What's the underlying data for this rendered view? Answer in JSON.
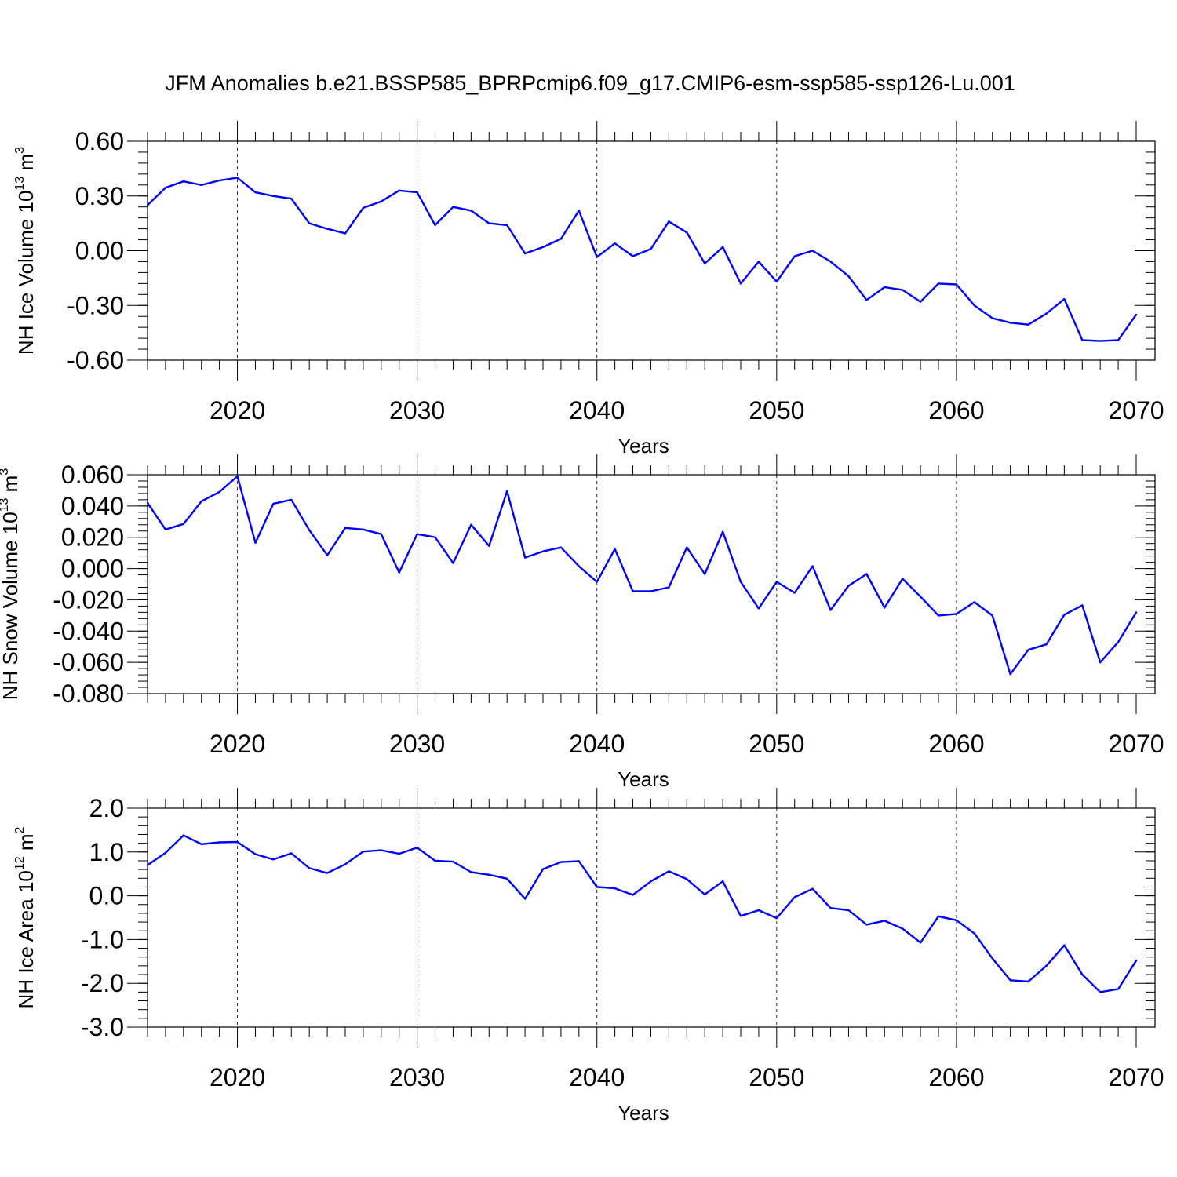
{
  "title": "JFM Anomalies b.e21.BSSP585_BPRPcmip6.f09_g17.CMIP6-esm-ssp585-ssp126-Lu.001",
  "chart_data": [
    {
      "type": "line",
      "ylabel": {
        "main": "NH Ice Volume 10",
        "exp": "13",
        "unit": " m",
        "unit_exp": "3"
      },
      "xlabel": "Years",
      "xlim": [
        2015,
        2070
      ],
      "ylim": [
        -0.6,
        0.6
      ],
      "xticks": [
        2020,
        2030,
        2040,
        2050,
        2060,
        2070
      ],
      "yticks": [
        "0.60",
        "0.30",
        "0.00",
        "-0.30",
        "-0.60"
      ],
      "ytick_values": [
        0.6,
        0.3,
        0.0,
        -0.3,
        -0.6
      ],
      "yminor_step": 0.06,
      "line_color": "#0000ff",
      "x": [
        2015,
        2016,
        2017,
        2018,
        2019,
        2020,
        2021,
        2022,
        2023,
        2024,
        2025,
        2026,
        2027,
        2028,
        2029,
        2030,
        2031,
        2032,
        2033,
        2034,
        2035,
        2036,
        2037,
        2038,
        2039,
        2040,
        2041,
        2042,
        2043,
        2044,
        2045,
        2046,
        2047,
        2048,
        2049,
        2050,
        2051,
        2052,
        2053,
        2054,
        2055,
        2056,
        2057,
        2058,
        2059,
        2060,
        2061,
        2062,
        2063,
        2064,
        2065,
        2066,
        2067,
        2068,
        2069,
        2070
      ],
      "values": [
        0.25,
        0.345,
        0.38,
        0.36,
        0.385,
        0.4,
        0.32,
        0.3,
        0.285,
        0.15,
        0.12,
        0.095,
        0.235,
        0.27,
        0.33,
        0.32,
        0.14,
        0.24,
        0.22,
        0.15,
        0.14,
        -0.015,
        0.02,
        0.065,
        0.22,
        -0.035,
        0.04,
        -0.03,
        0.01,
        0.16,
        0.1,
        -0.07,
        0.02,
        -0.18,
        -0.06,
        -0.17,
        -0.03,
        0.0,
        -0.06,
        -0.14,
        -0.27,
        -0.2,
        -0.215,
        -0.28,
        -0.18,
        -0.185,
        -0.3,
        -0.37,
        -0.395,
        -0.405,
        -0.345,
        -0.265,
        -0.49,
        -0.495,
        -0.49,
        -0.35
      ]
    },
    {
      "type": "line",
      "ylabel": {
        "main": "NH Snow Volume 10",
        "exp": "13",
        "unit": " m",
        "unit_exp": "3"
      },
      "xlabel": "Years",
      "xlim": [
        2015,
        2070
      ],
      "ylim": [
        -0.08,
        0.06
      ],
      "xticks": [
        2020,
        2030,
        2040,
        2050,
        2060,
        2070
      ],
      "yticks": [
        "0.060",
        "0.040",
        "0.020",
        "0.000",
        "-0.020",
        "-0.040",
        "-0.060",
        "-0.080"
      ],
      "ytick_values": [
        0.06,
        0.04,
        0.02,
        0.0,
        -0.02,
        -0.04,
        -0.06,
        -0.08
      ],
      "yminor_step": 0.004,
      "line_color": "#0000ff",
      "x": [
        2015,
        2016,
        2017,
        2018,
        2019,
        2020,
        2021,
        2022,
        2023,
        2024,
        2025,
        2026,
        2027,
        2028,
        2029,
        2030,
        2031,
        2032,
        2033,
        2034,
        2035,
        2036,
        2037,
        2038,
        2039,
        2040,
        2041,
        2042,
        2043,
        2044,
        2045,
        2046,
        2047,
        2048,
        2049,
        2050,
        2051,
        2052,
        2053,
        2054,
        2055,
        2056,
        2057,
        2058,
        2059,
        2060,
        2061,
        2062,
        2063,
        2064,
        2065,
        2066,
        2067,
        2068,
        2069,
        2070
      ],
      "values": [
        0.042,
        0.025,
        0.0285,
        0.043,
        0.049,
        0.059,
        0.0165,
        0.0415,
        0.044,
        0.0245,
        0.0085,
        0.026,
        0.025,
        0.022,
        -0.0025,
        0.022,
        0.02,
        0.0035,
        0.028,
        0.0145,
        0.0495,
        0.007,
        0.011,
        0.0135,
        0.0015,
        -0.0085,
        0.0125,
        -0.0145,
        -0.0145,
        -0.012,
        0.0135,
        -0.0035,
        0.0235,
        -0.0085,
        -0.0255,
        -0.0085,
        -0.0155,
        0.0015,
        -0.0265,
        -0.011,
        -0.0035,
        -0.025,
        -0.0065,
        -0.018,
        -0.03,
        -0.029,
        -0.0215,
        -0.03,
        -0.0675,
        -0.052,
        -0.0485,
        -0.0295,
        -0.0235,
        -0.06,
        -0.047,
        -0.028
      ]
    },
    {
      "type": "line",
      "ylabel": {
        "main": "NH Ice Area 10",
        "exp": "12",
        "unit": " m",
        "unit_exp": "2"
      },
      "xlabel": "Years",
      "xlim": [
        2015,
        2070
      ],
      "ylim": [
        -3.0,
        2.0
      ],
      "xticks": [
        2020,
        2030,
        2040,
        2050,
        2060,
        2070
      ],
      "yticks": [
        "2.0",
        "1.0",
        "0.0",
        "-1.0",
        "-2.0",
        "-3.0"
      ],
      "ytick_values": [
        2.0,
        1.0,
        0.0,
        -1.0,
        -2.0,
        -3.0
      ],
      "yminor_step": 0.2,
      "line_color": "#0000ff",
      "x": [
        2015,
        2016,
        2017,
        2018,
        2019,
        2020,
        2021,
        2022,
        2023,
        2024,
        2025,
        2026,
        2027,
        2028,
        2029,
        2030,
        2031,
        2032,
        2033,
        2034,
        2035,
        2036,
        2037,
        2038,
        2039,
        2040,
        2041,
        2042,
        2043,
        2044,
        2045,
        2046,
        2047,
        2048,
        2049,
        2050,
        2051,
        2052,
        2053,
        2054,
        2055,
        2056,
        2057,
        2058,
        2059,
        2060,
        2061,
        2062,
        2063,
        2064,
        2065,
        2066,
        2067,
        2068,
        2069,
        2070
      ],
      "values": [
        0.7,
        0.98,
        1.38,
        1.18,
        1.22,
        1.23,
        0.95,
        0.83,
        0.97,
        0.63,
        0.52,
        0.72,
        1.01,
        1.04,
        0.96,
        1.1,
        0.8,
        0.78,
        0.54,
        0.48,
        0.39,
        -0.07,
        0.61,
        0.77,
        0.79,
        0.2,
        0.17,
        0.02,
        0.33,
        0.56,
        0.38,
        0.03,
        0.33,
        -0.46,
        -0.33,
        -0.51,
        -0.03,
        0.16,
        -0.28,
        -0.33,
        -0.66,
        -0.57,
        -0.75,
        -1.07,
        -0.47,
        -0.56,
        -0.86,
        -1.43,
        -1.93,
        -1.96,
        -1.6,
        -1.13,
        -1.8,
        -2.2,
        -2.13,
        -1.48
      ]
    }
  ]
}
